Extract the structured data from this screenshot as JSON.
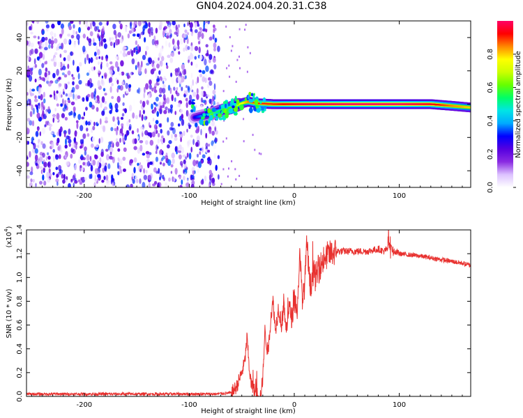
{
  "title": "GN04.2024.004.20.31.C38",
  "chart_data": [
    {
      "type": "heatmap",
      "xlabel": "Height of straight line (km)",
      "ylabel": "Frequency (Hz)",
      "xlim": [
        -255,
        168
      ],
      "ylim": [
        -50,
        50
      ],
      "xticks": [
        -200,
        -100,
        0,
        100
      ],
      "yticks": [
        -40,
        -20,
        0,
        20,
        40
      ],
      "colorbar": {
        "label": "Normalized spectral amplitude",
        "range": [
          0,
          1
        ],
        "ticks": [
          "0.0",
          "0.2",
          "0.4",
          "0.6",
          "0.8"
        ],
        "colormap": [
          "#ffffff",
          "#dcc2ff",
          "#8a2be2",
          "#5500e0",
          "#0000ff",
          "#00aaff",
          "#00e5e5",
          "#00ff66",
          "#66ff00",
          "#ccff00",
          "#ffff00",
          "#ff8800",
          "#ff0000",
          "#ff0066"
        ]
      },
      "noise_region": {
        "x": [
          -255,
          -72
        ],
        "frequency": [
          -50,
          50
        ],
        "amplitude": [
          0,
          0.35
        ]
      },
      "signal_track": [
        {
          "x": -95,
          "frequency": -8,
          "amplitude": 0.3
        },
        {
          "x": -80,
          "frequency": -6,
          "amplitude": 0.45
        },
        {
          "x": -70,
          "frequency": -4,
          "amplitude": 0.55
        },
        {
          "x": -60,
          "frequency": -2,
          "amplitude": 0.6
        },
        {
          "x": -50,
          "frequency": 0.5,
          "amplitude": 0.75
        },
        {
          "x": -44,
          "frequency": 1.5,
          "amplitude": 0.85
        },
        {
          "x": -35,
          "frequency": 0.5,
          "amplitude": 0.9
        },
        {
          "x": -20,
          "frequency": 0,
          "amplitude": 0.9
        },
        {
          "x": 0,
          "frequency": 0,
          "amplitude": 0.95
        },
        {
          "x": 50,
          "frequency": 0,
          "amplitude": 1.0
        },
        {
          "x": 100,
          "frequency": 0,
          "amplitude": 1.0
        },
        {
          "x": 130,
          "frequency": 0,
          "amplitude": 0.95
        },
        {
          "x": 150,
          "frequency": -1,
          "amplitude": 0.85
        },
        {
          "x": 168,
          "frequency": -2,
          "amplitude": 0.8
        }
      ]
    },
    {
      "type": "line",
      "xlabel": "Height of straight line (km)",
      "ylabel": "SNR (10 * v/v)",
      "yscale_label": "(x10",
      "yscale_exponent": "4",
      "yscale_close": ")",
      "xlim": [
        -255,
        168
      ],
      "ylim": [
        0,
        1.4
      ],
      "xticks": [
        -200,
        -100,
        0,
        100
      ],
      "yticks": [
        "0.0",
        "0.2",
        "0.4",
        "0.6",
        "0.8",
        "1.0",
        "1.2",
        "1.4"
      ],
      "color": "#e8312f",
      "series": [
        {
          "x": [
            -255,
            -200,
            -150,
            -100,
            -75,
            -60,
            -55,
            -50,
            -47,
            -45,
            -43,
            -41,
            -38,
            -35,
            -32,
            -30,
            -28,
            -25,
            -22,
            -20,
            -18,
            -15,
            -12,
            -10,
            -8,
            -5,
            -2,
            0,
            3,
            5,
            8,
            10,
            12,
            15,
            18,
            20,
            25,
            30,
            40,
            50,
            60,
            70,
            80,
            85,
            88,
            90,
            92,
            95,
            100,
            120,
            140,
            160,
            168
          ],
          "y": [
            0.02,
            0.02,
            0.02,
            0.02,
            0.02,
            0.03,
            0.08,
            0.2,
            0.3,
            0.5,
            0.25,
            0.1,
            0.05,
            0.02,
            0.01,
            0.15,
            0.55,
            0.35,
            0.7,
            0.8,
            0.55,
            0.75,
            0.6,
            0.8,
            0.55,
            0.75,
            0.65,
            0.85,
            0.7,
            1.2,
            0.8,
            0.95,
            1.3,
            0.9,
            1.05,
            1.0,
            1.1,
            1.18,
            1.22,
            1.22,
            1.22,
            1.22,
            1.24,
            1.22,
            1.24,
            1.28,
            1.25,
            1.22,
            1.2,
            1.18,
            1.15,
            1.12,
            1.1
          ]
        }
      ]
    }
  ]
}
